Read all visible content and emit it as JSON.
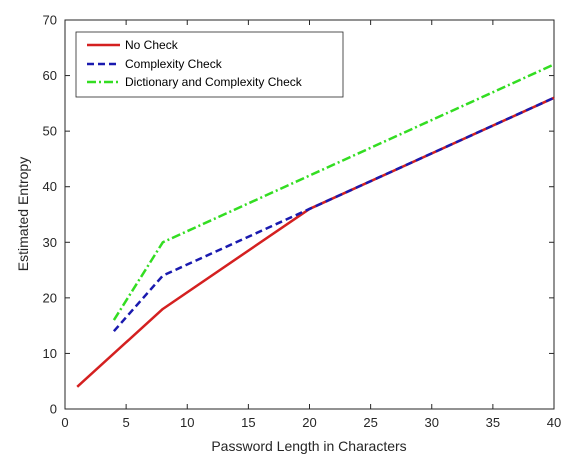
{
  "chart_data": {
    "type": "line",
    "title": "",
    "xlabel": "Password Length in Characters",
    "ylabel": "Estimated Entropy",
    "xlim": [
      0,
      40
    ],
    "ylim": [
      0,
      70
    ],
    "xticks": [
      0,
      5,
      10,
      15,
      20,
      25,
      30,
      35,
      40
    ],
    "yticks": [
      0,
      10,
      20,
      30,
      40,
      50,
      60,
      70
    ],
    "grid": false,
    "legend_position": "top-left",
    "series": [
      {
        "name": "No Check",
        "color": "#d42020",
        "style": "solid",
        "x": [
          1,
          8,
          20,
          40
        ],
        "y": [
          4,
          18,
          36,
          56
        ]
      },
      {
        "name": "Complexity Check",
        "color": "#1a1aaf",
        "style": "dashed",
        "x": [
          4,
          8,
          20,
          40
        ],
        "y": [
          14,
          24,
          36,
          56
        ]
      },
      {
        "name": "Dictionary and Complexity Check",
        "color": "#33dd22",
        "style": "dashdot",
        "x": [
          4,
          8,
          40
        ],
        "y": [
          16,
          30,
          62
        ]
      }
    ]
  }
}
